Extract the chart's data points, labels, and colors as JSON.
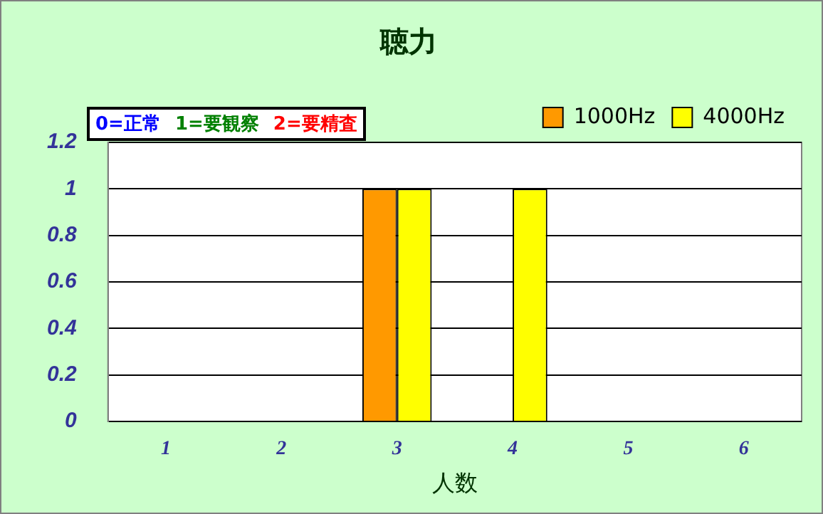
{
  "chart_data": {
    "type": "bar",
    "title": "聴力",
    "xlabel": "人数",
    "categories": [
      "1",
      "2",
      "3",
      "4",
      "5",
      "6"
    ],
    "series": [
      {
        "name": "1000Hz",
        "color": "#ff9900",
        "values": [
          0,
          0,
          1,
          0,
          0,
          0
        ]
      },
      {
        "name": "4000Hz",
        "color": "#ffff00",
        "values": [
          0,
          0,
          1,
          1,
          0,
          0
        ]
      }
    ],
    "ylim": [
      0,
      1.2
    ],
    "yticks": [
      0,
      0.2,
      0.4,
      0.6,
      0.8,
      1,
      1.2
    ],
    "grid": "y",
    "legend": "top right",
    "annotations": [
      "0=正常",
      "1=要観察",
      "2=要精査"
    ]
  }
}
